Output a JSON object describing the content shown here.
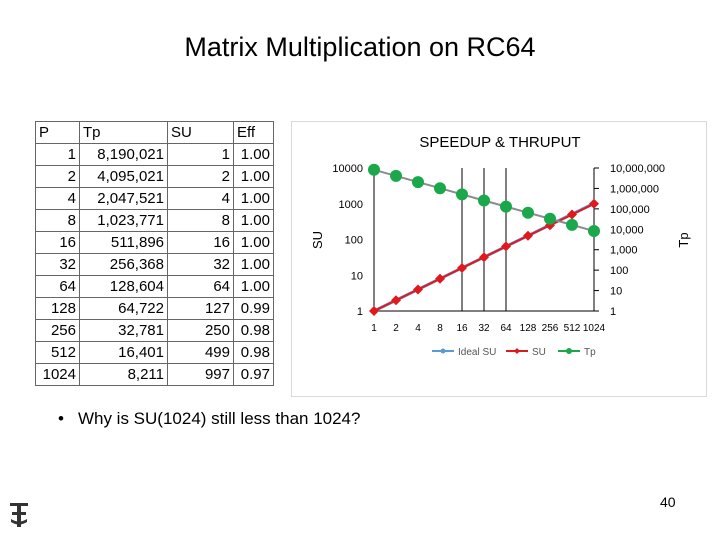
{
  "slide_title": "Matrix Multiplication on RC64",
  "table": {
    "headers": [
      "P",
      "Tp",
      "SU",
      "Eff"
    ],
    "rows": [
      [
        "1",
        "8,190,021",
        "1",
        "1.00"
      ],
      [
        "2",
        "4,095,021",
        "2",
        "1.00"
      ],
      [
        "4",
        "2,047,521",
        "4",
        "1.00"
      ],
      [
        "8",
        "1,023,771",
        "8",
        "1.00"
      ],
      [
        "16",
        "511,896",
        "16",
        "1.00"
      ],
      [
        "32",
        "256,368",
        "32",
        "1.00"
      ],
      [
        "64",
        "128,604",
        "64",
        "1.00"
      ],
      [
        "128",
        "64,722",
        "127",
        "0.99"
      ],
      [
        "256",
        "32,781",
        "250",
        "0.98"
      ],
      [
        "512",
        "16,401",
        "499",
        "0.98"
      ],
      [
        "1024",
        "8,211",
        "997",
        "0.97"
      ]
    ]
  },
  "chart_data": {
    "type": "line",
    "title": "SPEEDUP & THRUPUT",
    "categories": [
      "1",
      "2",
      "4",
      "8",
      "16",
      "32",
      "64",
      "128",
      "256",
      "512",
      "1024"
    ],
    "ylabel": "SU",
    "y2label": "Tp",
    "y_scale": "log",
    "ylim": [
      1,
      10000
    ],
    "y_ticks": [
      "10000",
      "1000",
      "100",
      "10",
      "1"
    ],
    "y2_scale": "log",
    "y2lim": [
      1,
      10000000
    ],
    "y2_ticks": [
      "10,000,000",
      "1,000,000",
      "100,000",
      "10,000",
      "1,000",
      "100",
      "10",
      "1"
    ],
    "series": [
      {
        "name": "Ideal SU",
        "axis": "left",
        "color": "#5b9bd5",
        "values": [
          1,
          2,
          4,
          8,
          16,
          32,
          64,
          128,
          256,
          512,
          1024
        ]
      },
      {
        "name": "SU",
        "axis": "left",
        "color": "#e0191f",
        "values": [
          1,
          2,
          4,
          8,
          16,
          32,
          64,
          127,
          250,
          499,
          997
        ]
      },
      {
        "name": "Tp",
        "axis": "right",
        "color": "#1aa84b",
        "values": [
          8190021,
          4095021,
          2047521,
          1023771,
          511896,
          256368,
          128604,
          64722,
          32781,
          16401,
          8211
        ]
      }
    ],
    "legend_position": "bottom",
    "vertical_gridlines_at": [
      "16",
      "32",
      "64"
    ]
  },
  "bullet_text": "Why is SU(1024) still less than 1024?",
  "page_number": "40",
  "logo_icon": "technion-logo-icon"
}
